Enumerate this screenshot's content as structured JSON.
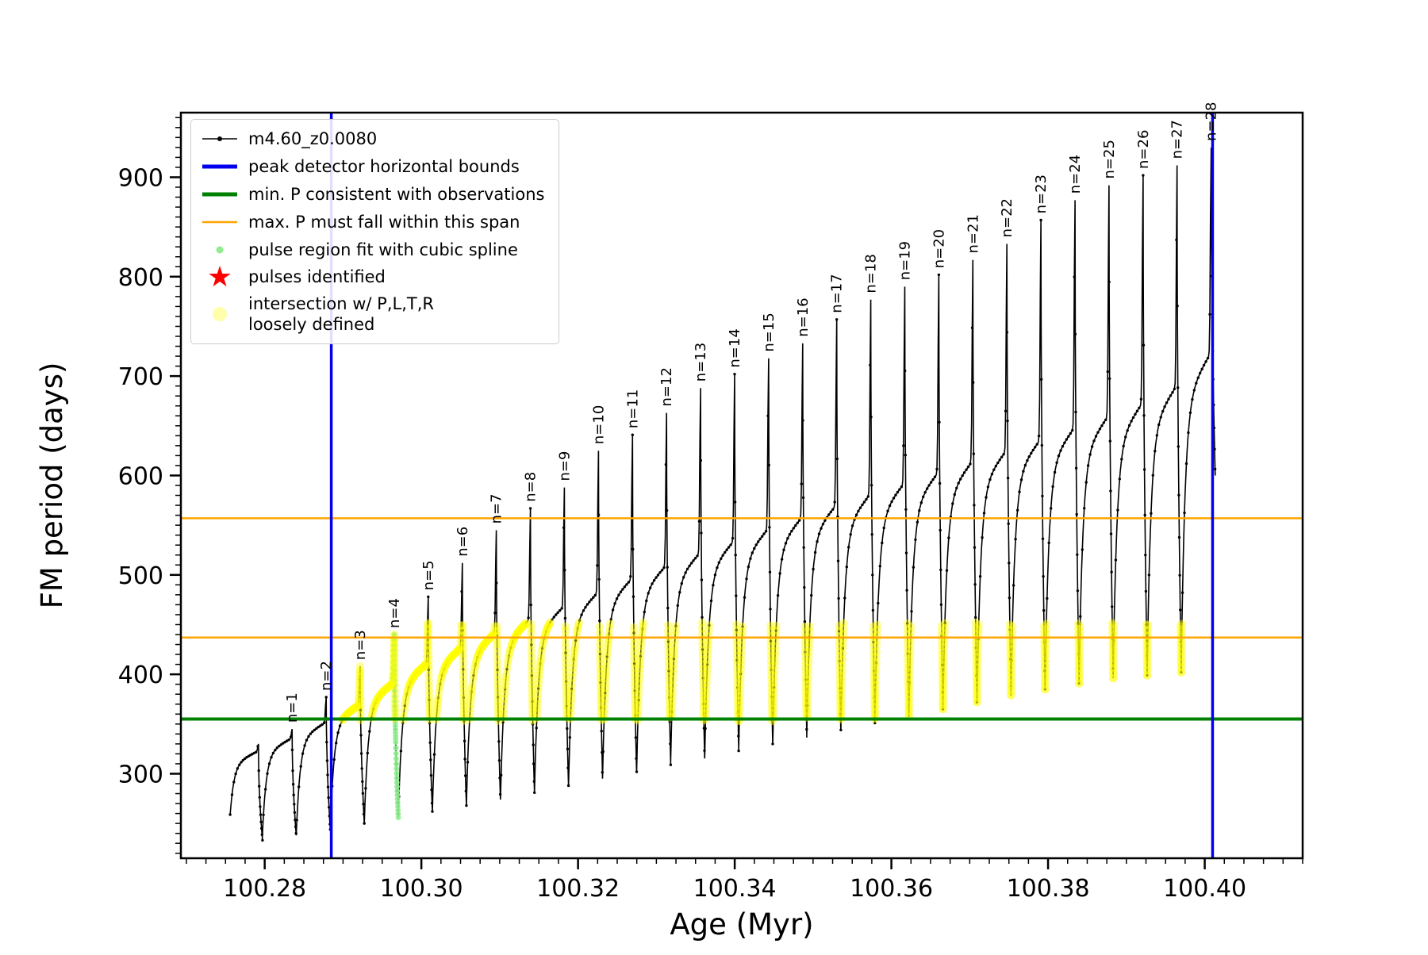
{
  "figure": {
    "background": "#ffffff"
  },
  "chart_data": {
    "type": "line",
    "title": "",
    "xlabel": "Age (Myr)",
    "ylabel": "FM period (days)",
    "xlim": [
      100.2693,
      100.4125
    ],
    "ylim": [
      215,
      965
    ],
    "x_major_ticks": [
      100.28,
      100.3,
      100.32,
      100.34,
      100.36,
      100.38,
      100.4
    ],
    "x_tick_labels": [
      "100.28",
      "100.30",
      "100.32",
      "100.34",
      "100.36",
      "100.38",
      "100.40"
    ],
    "x_minor_step": 0.0025,
    "y_major_ticks": [
      300,
      400,
      500,
      600,
      700,
      800,
      900
    ],
    "y_minor_step": 10,
    "grid": false,
    "legend_position": "upper-left",
    "series": [
      {
        "name": "m4.60_z0.0080",
        "color": "#000000",
        "marker": "dot"
      }
    ],
    "pulse_spacing": 0.004345,
    "start_dip": 230,
    "start_t": 0.05,
    "pulses": [
      {
        "n": 0,
        "label": null,
        "x": 100.2792,
        "peak": 330,
        "shoulder": 323,
        "dip_after": 233
      },
      {
        "n": 1,
        "label": "n=1",
        "x": 100.2835,
        "peak": 345,
        "shoulder": 336,
        "dip_after": 238
      },
      {
        "n": 2,
        "label": "n=2",
        "x": 100.28785,
        "peak": 377,
        "shoulder": 352,
        "dip_after": 244
      },
      {
        "n": 3,
        "label": "n=3",
        "x": 100.29219,
        "peak": 408,
        "shoulder": 370,
        "dip_after": 250
      },
      {
        "n": 4,
        "label": "n=4",
        "x": 100.29654,
        "peak": 440,
        "shoulder": 392,
        "dip_after": 256
      },
      {
        "n": 5,
        "label": "n=5",
        "x": 100.30088,
        "peak": 478,
        "shoulder": 412,
        "dip_after": 262
      },
      {
        "n": 6,
        "label": "n=6",
        "x": 100.30523,
        "peak": 512,
        "shoulder": 428,
        "dip_after": 268
      },
      {
        "n": 7,
        "label": "n=7",
        "x": 100.30957,
        "peak": 545,
        "shoulder": 443,
        "dip_after": 274
      },
      {
        "n": 8,
        "label": "n=8",
        "x": 100.31392,
        "peak": 567,
        "shoulder": 456,
        "dip_after": 281
      },
      {
        "n": 9,
        "label": "n=9",
        "x": 100.31826,
        "peak": 588,
        "shoulder": 469,
        "dip_after": 288
      },
      {
        "n": 10,
        "label": "n=10",
        "x": 100.32261,
        "peak": 625,
        "shoulder": 483,
        "dip_after": 295
      },
      {
        "n": 11,
        "label": "n=11",
        "x": 100.32695,
        "peak": 641,
        "shoulder": 497,
        "dip_after": 302
      },
      {
        "n": 12,
        "label": "n=12",
        "x": 100.3313,
        "peak": 663,
        "shoulder": 510,
        "dip_after": 309
      },
      {
        "n": 13,
        "label": "n=13",
        "x": 100.33564,
        "peak": 688,
        "shoulder": 523,
        "dip_after": 316
      },
      {
        "n": 14,
        "label": "n=14",
        "x": 100.33999,
        "peak": 702,
        "shoulder": 535,
        "dip_after": 323
      },
      {
        "n": 15,
        "label": "n=15",
        "x": 100.34433,
        "peak": 718,
        "shoulder": 547,
        "dip_after": 330
      },
      {
        "n": 16,
        "label": "n=16",
        "x": 100.34868,
        "peak": 733,
        "shoulder": 559,
        "dip_after": 337
      },
      {
        "n": 17,
        "label": "n=17",
        "x": 100.35302,
        "peak": 757,
        "shoulder": 571,
        "dip_after": 344
      },
      {
        "n": 18,
        "label": "n=18",
        "x": 100.35737,
        "peak": 777,
        "shoulder": 582,
        "dip_after": 351
      },
      {
        "n": 19,
        "label": "n=19",
        "x": 100.36171,
        "peak": 790,
        "shoulder": 593,
        "dip_after": 358
      },
      {
        "n": 20,
        "label": "n=20",
        "x": 100.36606,
        "peak": 802,
        "shoulder": 604,
        "dip_after": 365
      },
      {
        "n": 21,
        "label": "n=21",
        "x": 100.3704,
        "peak": 817,
        "shoulder": 615,
        "dip_after": 372
      },
      {
        "n": 22,
        "label": "n=22",
        "x": 100.37475,
        "peak": 833,
        "shoulder": 626,
        "dip_after": 379
      },
      {
        "n": 23,
        "label": "n=23",
        "x": 100.37909,
        "peak": 857,
        "shoulder": 637,
        "dip_after": 385
      },
      {
        "n": 24,
        "label": "n=24",
        "x": 100.38344,
        "peak": 877,
        "shoulder": 649,
        "dip_after": 391
      },
      {
        "n": 25,
        "label": "n=25",
        "x": 100.38778,
        "peak": 892,
        "shoulder": 661,
        "dip_after": 396
      },
      {
        "n": 26,
        "label": "n=26",
        "x": 100.39213,
        "peak": 902,
        "shoulder": 674,
        "dip_after": 399
      },
      {
        "n": 27,
        "label": "n=27",
        "x": 100.39647,
        "peak": 912,
        "shoulder": 691,
        "dip_after": 402
      },
      {
        "n": 28,
        "label": "n=28",
        "x": 100.40082,
        "peak": 930,
        "shoulder": 724,
        "dip_after": 600
      }
    ],
    "peak_detector_bounds": {
      "color": "#0000ee",
      "x_values": [
        100.2885,
        100.401
      ]
    },
    "min_P_line": {
      "color": "#008000",
      "y": 355
    },
    "max_P_lines": {
      "color": "#ffa500",
      "y_values": [
        437,
        557
      ]
    },
    "spline_fit_cluster": {
      "color": "#90ee90",
      "pulse_n": 4,
      "y_range": [
        250,
        446
      ]
    },
    "intersection_band": {
      "color": "#ffff00",
      "y_range": [
        353,
        452
      ],
      "x_min": 100.2893
    }
  },
  "legend": {
    "entries": [
      {
        "label": "m4.60_z0.0080",
        "swatch": "line-dot",
        "color": "#000000"
      },
      {
        "label": "peak detector horizontal bounds",
        "swatch": "thick-line",
        "color": "#0000ee"
      },
      {
        "label": "min. P consistent with observations",
        "swatch": "thick-line",
        "color": "#008000"
      },
      {
        "label": "max. P must fall within this span",
        "swatch": "line",
        "color": "#ffa500"
      },
      {
        "label": "pulse region fit with cubic spline",
        "swatch": "dot-small",
        "color": "#90ee90"
      },
      {
        "label": "pulses identified",
        "swatch": "star",
        "color": "#ff0000"
      },
      {
        "label": "intersection w/ P,L,T,R\nloosely defined",
        "swatch": "dot-large",
        "color": "#ffff66"
      }
    ]
  }
}
